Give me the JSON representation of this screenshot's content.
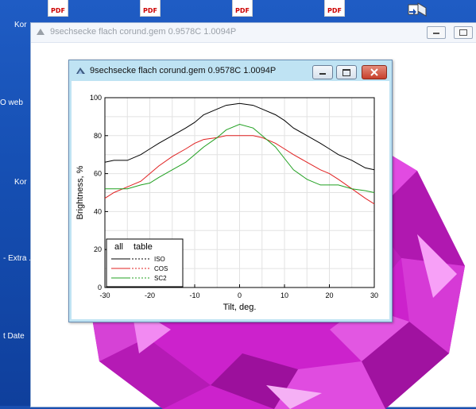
{
  "desktop": {
    "icons": [
      {
        "label": "PDF"
      },
      {
        "label": "PDF"
      },
      {
        "label": "PDF"
      },
      {
        "label": "PDF"
      }
    ],
    "side_labels": [
      "Kor",
      "O web",
      "Kor",
      "- Extra\n...",
      "t Date"
    ]
  },
  "back_window": {
    "title": "9sechsecke flach corund.gem 0.9578C 1.0094P",
    "gem_color": "#cc22cc"
  },
  "front_window": {
    "title": "9sechsecke flach corund.gem 0.9578C 1.0094P"
  },
  "chart_data": {
    "type": "line",
    "xlabel": "Tilt, deg.",
    "ylabel": "Brightness, %",
    "xlim": [
      -30,
      30
    ],
    "ylim": [
      0,
      100
    ],
    "x_ticks": [
      -30,
      -20,
      -10,
      0,
      10,
      20,
      30
    ],
    "y_ticks": [
      0,
      20,
      40,
      60,
      80,
      100
    ],
    "grid": true,
    "legend_position": "bottom-left",
    "legend_header": [
      "all",
      "table"
    ],
    "series": [
      {
        "name": "ISO",
        "color": "#000000",
        "x": [
          -30,
          -28,
          -25,
          -22,
          -20,
          -18,
          -15,
          -12,
          -10,
          -8,
          -5,
          -3,
          0,
          3,
          5,
          8,
          10,
          12,
          15,
          18,
          20,
          22,
          25,
          28,
          30
        ],
        "y": [
          66,
          67,
          67,
          70,
          73,
          76,
          80,
          84,
          87,
          91,
          94,
          96,
          97,
          96,
          94,
          91,
          88,
          84,
          80,
          76,
          73,
          70,
          67,
          63,
          62
        ]
      },
      {
        "name": "COS",
        "color": "#e02020",
        "x": [
          -30,
          -28,
          -25,
          -22,
          -20,
          -18,
          -15,
          -12,
          -10,
          -8,
          -5,
          -3,
          0,
          3,
          5,
          8,
          10,
          12,
          15,
          18,
          20,
          22,
          25,
          28,
          30
        ],
        "y": [
          47,
          50,
          53,
          56,
          60,
          64,
          69,
          73,
          76,
          78,
          79,
          80,
          80,
          80,
          79,
          76,
          73,
          70,
          66,
          62,
          60,
          57,
          52,
          47,
          44
        ]
      },
      {
        "name": "SC2",
        "color": "#20a020",
        "x": [
          -30,
          -28,
          -25,
          -22,
          -20,
          -18,
          -15,
          -12,
          -10,
          -8,
          -5,
          -3,
          0,
          3,
          5,
          8,
          10,
          12,
          15,
          18,
          20,
          22,
          25,
          28,
          30
        ],
        "y": [
          52,
          52,
          52,
          54,
          55,
          58,
          62,
          66,
          70,
          74,
          79,
          83,
          86,
          84,
          80,
          74,
          68,
          62,
          57,
          54,
          54,
          54,
          52,
          51,
          50
        ]
      }
    ]
  }
}
